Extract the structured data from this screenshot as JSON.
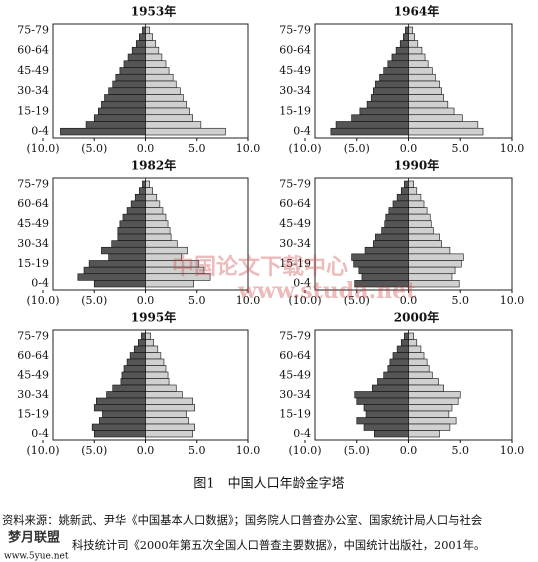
{
  "chart_data": [
    {
      "type": "bar",
      "orientation": "horizontal",
      "title": "1953年",
      "categories": [
        "0-4",
        null,
        null,
        "15-19",
        null,
        null,
        "30-34",
        null,
        null,
        "45-49",
        null,
        null,
        "60-64",
        null,
        null,
        "75-79"
      ],
      "series": [
        {
          "color": "#555555",
          "values": [
            -8.3,
            -5.8,
            -5.0,
            -4.6,
            -4.3,
            -4.0,
            -3.6,
            -3.2,
            -2.9,
            -2.5,
            -2.1,
            -1.7,
            -1.3,
            -0.9,
            -0.6,
            -0.3
          ]
        },
        {
          "color": "#d0d0d0",
          "values": [
            7.8,
            5.4,
            4.6,
            4.3,
            4.0,
            3.7,
            3.4,
            3.0,
            2.7,
            2.3,
            2.0,
            1.6,
            1.3,
            1.0,
            0.7,
            0.4
          ]
        }
      ],
      "xlim": [
        -10,
        10
      ],
      "xticks": [
        {
          "value": -10,
          "label": "(10.0)"
        },
        {
          "value": -5,
          "label": "(5.0)"
        },
        {
          "value": 0,
          "label": "0.0"
        },
        {
          "value": 5,
          "label": "5.0"
        },
        {
          "value": 10,
          "label": "10.0"
        }
      ]
    },
    {
      "type": "bar",
      "orientation": "horizontal",
      "title": "1964年",
      "categories": [
        "0-4",
        null,
        null,
        "15-19",
        null,
        null,
        "30-34",
        null,
        null,
        "45-49",
        null,
        null,
        "60-64",
        null,
        null,
        "75-79"
      ],
      "series": [
        {
          "color": "#555555",
          "values": [
            -7.5,
            -7.0,
            -5.5,
            -4.7,
            -4.0,
            -3.6,
            -3.4,
            -3.2,
            -2.8,
            -2.4,
            -2.0,
            -1.6,
            -1.2,
            -0.8,
            -0.5,
            -0.3
          ]
        },
        {
          "color": "#d0d0d0",
          "values": [
            7.2,
            6.7,
            5.2,
            4.4,
            3.8,
            3.4,
            3.2,
            3.0,
            2.6,
            2.3,
            1.9,
            1.6,
            1.3,
            0.9,
            0.6,
            0.4
          ]
        }
      ],
      "xlim": [
        -10,
        10
      ],
      "xticks": [
        {
          "value": -10,
          "label": "(10.0)"
        },
        {
          "value": -5,
          "label": "(5.0)"
        },
        {
          "value": 0,
          "label": "0.0"
        },
        {
          "value": 5,
          "label": "5.0"
        },
        {
          "value": 10,
          "label": "10.0"
        }
      ]
    },
    {
      "type": "bar",
      "orientation": "horizontal",
      "title": "1982年",
      "categories": [
        "0-4",
        null,
        null,
        "15-19",
        null,
        null,
        "30-34",
        null,
        null,
        "45-49",
        null,
        null,
        "60-64",
        null,
        null,
        "75-79"
      ],
      "series": [
        {
          "color": "#555555",
          "values": [
            -5.0,
            -6.6,
            -6.0,
            -5.5,
            -3.6,
            -4.3,
            -3.3,
            -2.7,
            -2.7,
            -2.5,
            -2.2,
            -1.8,
            -1.4,
            -1.0,
            -0.6,
            -0.3
          ]
        },
        {
          "color": "#d0d0d0",
          "values": [
            4.7,
            6.3,
            5.7,
            5.2,
            3.5,
            4.1,
            3.1,
            2.5,
            2.4,
            2.2,
            2.0,
            1.7,
            1.4,
            1.1,
            0.7,
            0.4
          ]
        }
      ],
      "xlim": [
        -10,
        10
      ],
      "xticks": [
        {
          "value": -10,
          "label": "(10.0)"
        },
        {
          "value": -5,
          "label": "(5.0)"
        },
        {
          "value": 0,
          "label": "0.0"
        },
        {
          "value": 5,
          "label": "5.0"
        },
        {
          "value": 10,
          "label": "10.0"
        }
      ]
    },
    {
      "type": "bar",
      "orientation": "horizontal",
      "title": "1990年",
      "categories": [
        "0-4",
        null,
        null,
        "15-19",
        null,
        null,
        "30-34",
        null,
        null,
        "45-49",
        null,
        null,
        "60-64",
        null,
        null,
        "75-79"
      ],
      "series": [
        {
          "color": "#555555",
          "values": [
            -5.2,
            -4.5,
            -4.8,
            -5.3,
            -5.5,
            -4.2,
            -3.4,
            -3.2,
            -2.6,
            -2.3,
            -2.2,
            -1.9,
            -1.5,
            -1.1,
            -0.7,
            -0.4
          ]
        },
        {
          "color": "#d0d0d0",
          "values": [
            4.9,
            4.2,
            4.5,
            5.1,
            5.3,
            4.0,
            3.2,
            3.0,
            2.4,
            2.2,
            2.1,
            1.8,
            1.5,
            1.2,
            0.8,
            0.5
          ]
        }
      ],
      "xlim": [
        -10,
        10
      ],
      "xticks": [
        {
          "value": -10,
          "label": "(10.0)"
        },
        {
          "value": -5,
          "label": "(5.0)"
        },
        {
          "value": 0,
          "label": "0.0"
        },
        {
          "value": 5,
          "label": "5.0"
        },
        {
          "value": 10,
          "label": "10.0"
        }
      ]
    },
    {
      "type": "bar",
      "orientation": "horizontal",
      "title": "1995年",
      "categories": [
        "0-4",
        null,
        null,
        "15-19",
        null,
        null,
        "30-34",
        null,
        null,
        "45-49",
        null,
        null,
        "60-64",
        null,
        null,
        "75-79"
      ],
      "series": [
        {
          "color": "#555555",
          "values": [
            -5.0,
            -5.2,
            -4.5,
            -4.2,
            -5.0,
            -4.8,
            -3.8,
            -3.2,
            -2.4,
            -2.3,
            -2.1,
            -1.8,
            -1.5,
            -1.1,
            -0.7,
            -0.4
          ]
        },
        {
          "color": "#d0d0d0",
          "values": [
            4.6,
            4.8,
            4.2,
            4.0,
            4.8,
            4.6,
            3.6,
            3.0,
            2.3,
            2.2,
            2.0,
            1.8,
            1.5,
            1.2,
            0.8,
            0.5
          ]
        }
      ],
      "xlim": [
        -10,
        10
      ],
      "xticks": [
        {
          "value": -10,
          "label": "(10.0)"
        },
        {
          "value": -5,
          "label": "(5.0)"
        },
        {
          "value": 0,
          "label": "0.0"
        },
        {
          "value": 5,
          "label": "5.0"
        },
        {
          "value": 10,
          "label": "10.0"
        }
      ]
    },
    {
      "type": "bar",
      "orientation": "horizontal",
      "title": "2000年",
      "categories": [
        "0-4",
        null,
        null,
        "15-19",
        null,
        null,
        "30-34",
        null,
        null,
        "45-49",
        null,
        null,
        "60-64",
        null,
        null,
        "75-79"
      ],
      "series": [
        {
          "color": "#555555",
          "values": [
            -3.3,
            -4.3,
            -5.0,
            -4.1,
            -4.3,
            -5.0,
            -5.2,
            -3.5,
            -3.0,
            -2.4,
            -2.0,
            -1.8,
            -1.5,
            -1.1,
            -0.7,
            -0.4
          ]
        },
        {
          "color": "#d0d0d0",
          "values": [
            3.0,
            4.0,
            4.6,
            3.9,
            4.2,
            4.8,
            5.0,
            3.4,
            2.9,
            2.3,
            2.0,
            1.8,
            1.5,
            1.2,
            0.8,
            0.5
          ]
        }
      ],
      "xlim": [
        -10,
        10
      ],
      "xticks": [
        {
          "value": -10,
          "label": "(10.0)"
        },
        {
          "value": -5,
          "label": "(5.0)"
        },
        {
          "value": 0,
          "label": "0.0"
        },
        {
          "value": 5,
          "label": "5.0"
        },
        {
          "value": 10,
          "label": "10.0"
        }
      ]
    }
  ],
  "caption": "图1　中国人口年龄金字塔",
  "source": [
    "资料来源：姚新武、尹华《中国基本人口数据》；国务院人口普查办公室、国家统计局人口与社会",
    "科技统计司《2000年第五次全国人口普查主要数据》，中国统计出版社，2001年。"
  ],
  "watermark": [
    "中国论文下载中心",
    "www.studa.net",
    "梦月联盟",
    "www.5yue.net"
  ]
}
